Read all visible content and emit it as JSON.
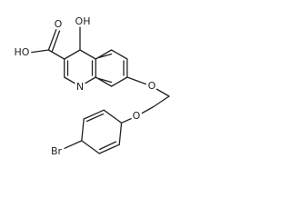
{
  "atoms": [
    {
      "label": "HO"
    },
    {
      "label": "O"
    },
    {
      "label": "OH"
    },
    {
      "label": "N"
    },
    {
      "label": "O"
    },
    {
      "label": "O"
    },
    {
      "label": "Br"
    }
  ]
}
